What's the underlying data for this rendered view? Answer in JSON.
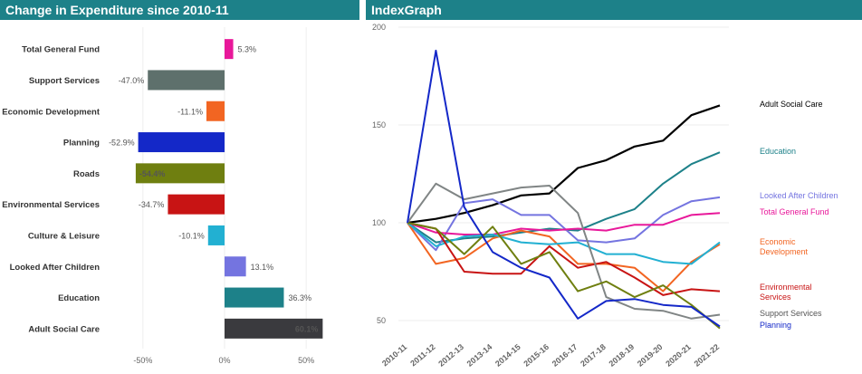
{
  "chart_data": [
    {
      "type": "bar",
      "orientation": "horizontal",
      "title": "Change in Expenditure since 2010-11",
      "categories": [
        "Total General Fund",
        "Support Services",
        "Economic Development",
        "Planning",
        "Roads",
        "Environmental Services",
        "Culture & Leisure",
        "Looked After Children",
        "Education",
        "Adult Social Care"
      ],
      "values": [
        5.3,
        -47.0,
        -11.1,
        -52.9,
        -54.4,
        -34.7,
        -10.1,
        13.1,
        36.3,
        60.1
      ],
      "value_labels": [
        "5.3%",
        "-47.0%",
        "-11.1%",
        "-52.9%",
        "-54.4%",
        "-34.7%",
        "-10.1%",
        "13.1%",
        "36.3%",
        "60.1%"
      ],
      "colors": [
        "#e8189a",
        "#5e706c",
        "#f26522",
        "#1428c8",
        "#6f7f10",
        "#c81414",
        "#22b0d2",
        "#7474e0",
        "#1d8189",
        "#3a3a3e"
      ],
      "xlim": [
        -60,
        62
      ],
      "x_ticks": [
        -50,
        0,
        50
      ],
      "x_tick_labels": [
        "-50%",
        "0%",
        "50%"
      ],
      "grid": true
    },
    {
      "type": "line",
      "title": "IndexGraph",
      "x": [
        "2010-11",
        "2011-12",
        "2012-13",
        "2013-14",
        "2014-15",
        "2015-16",
        "2016-17",
        "2017-18",
        "2018-19",
        "2019-20",
        "2020-21",
        "2021-22"
      ],
      "ylim": [
        45,
        200
      ],
      "y_ticks": [
        50,
        100,
        150,
        200
      ],
      "grid": true,
      "series": [
        {
          "name": "Adult Social Care",
          "color": "#000000",
          "values": [
            100,
            102,
            105,
            109,
            114,
            115,
            128,
            132,
            139,
            142,
            155,
            160
          ]
        },
        {
          "name": "Education",
          "color": "#1d8189",
          "values": [
            100,
            90,
            92,
            93,
            95,
            97,
            96,
            102,
            107,
            120,
            130,
            136
          ]
        },
        {
          "name": "Looked After Children",
          "color": "#7474e0",
          "values": [
            100,
            86,
            110,
            112,
            104,
            104,
            91,
            90,
            92,
            104,
            111,
            113
          ]
        },
        {
          "name": "Total General Fund",
          "color": "#e8189a",
          "values": [
            100,
            95,
            94,
            94,
            97,
            96,
            97,
            96,
            99,
            99,
            104,
            105
          ]
        },
        {
          "name": "Economic Development",
          "color": "#f26522",
          "values": [
            100,
            79,
            82,
            92,
            96,
            93,
            79,
            79,
            77,
            65,
            80,
            89
          ]
        },
        {
          "name": "Culture & Leisure",
          "color": "#22b0d2",
          "values": [
            100,
            88,
            93,
            94,
            90,
            89,
            90,
            84,
            84,
            80,
            79,
            90
          ]
        },
        {
          "name": "Environmental Services",
          "color": "#c81414",
          "values": [
            100,
            97,
            75,
            74,
            74,
            88,
            77,
            80,
            72,
            63,
            66,
            65
          ]
        },
        {
          "name": "Support Services",
          "color": "#808585",
          "values": [
            100,
            120,
            112,
            115,
            118,
            119,
            105,
            62,
            56,
            55,
            51,
            53
          ]
        },
        {
          "name": "Roads",
          "color": "#6f7f10",
          "values": [
            100,
            97,
            84,
            98,
            79,
            85,
            65,
            70,
            62,
            68,
            58,
            46
          ]
        },
        {
          "name": "Planning",
          "color": "#1428c8",
          "values": [
            100,
            188,
            108,
            85,
            77,
            72,
            51,
            60,
            61,
            58,
            57,
            47
          ]
        }
      ],
      "end_labels": [
        {
          "lines": [
            "Adult Social Care"
          ],
          "color": "#000000"
        },
        {
          "lines": [
            "Education"
          ],
          "color": "#1d8189"
        },
        {
          "lines": [
            "Looked After Children"
          ],
          "color": "#7474e0"
        },
        {
          "lines": [
            "Total General Fund"
          ],
          "color": "#e8189a"
        },
        {
          "lines": [
            "Economic",
            "Development"
          ],
          "color": "#f26522"
        },
        {
          "lines": [
            "Environmental",
            "Services"
          ],
          "color": "#c81414"
        },
        {
          "lines": [
            "Support Services"
          ],
          "color": "#555555"
        },
        {
          "lines": [
            "Planning"
          ],
          "color": "#1428c8"
        }
      ]
    }
  ]
}
